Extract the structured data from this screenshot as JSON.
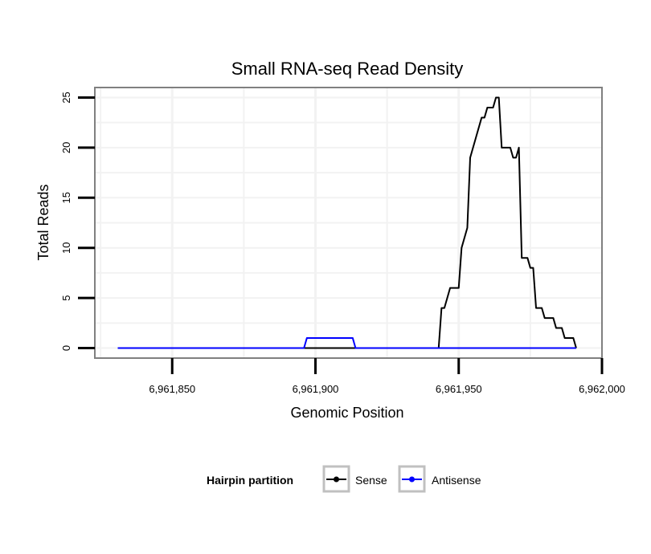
{
  "chart_data": {
    "type": "line",
    "title": "Small RNA-seq Read Density",
    "xlabel": "Genomic Position",
    "ylabel": "Total Reads",
    "xlim": [
      6961823,
      6962000
    ],
    "ylim": [
      -1.0,
      26.0
    ],
    "x_ticks": [
      6961850,
      6961900,
      6961950,
      6962000
    ],
    "x_tick_labels": [
      "6,961,850",
      "6,961,900",
      "6,961,950",
      "6,962,000"
    ],
    "y_ticks": [
      0,
      5,
      10,
      15,
      20,
      25
    ],
    "y_tick_labels": [
      "0",
      "5",
      "10",
      "15",
      "20",
      "25"
    ],
    "grid": true,
    "legend": {
      "title": "Hairpin partition",
      "position": "bottom",
      "entries": [
        "Sense",
        "Antisense"
      ]
    },
    "series": [
      {
        "name": "Sense",
        "color": "#000000",
        "points": [
          [
            6961831,
            0
          ],
          [
            6961943,
            0
          ],
          [
            6961944,
            4
          ],
          [
            6961945,
            4
          ],
          [
            6961946,
            5
          ],
          [
            6961947,
            6
          ],
          [
            6961950,
            6
          ],
          [
            6961951,
            10
          ],
          [
            6961953,
            12
          ],
          [
            6961954,
            19
          ],
          [
            6961956,
            21
          ],
          [
            6961958,
            23
          ],
          [
            6961959,
            23
          ],
          [
            6961960,
            24
          ],
          [
            6961962,
            24
          ],
          [
            6961963,
            25
          ],
          [
            6961964,
            25
          ],
          [
            6961965,
            20
          ],
          [
            6961968,
            20
          ],
          [
            6961969,
            19
          ],
          [
            6961970,
            19
          ],
          [
            6961971,
            20
          ],
          [
            6961972,
            9
          ],
          [
            6961974,
            9
          ],
          [
            6961975,
            8
          ],
          [
            6961976,
            8
          ],
          [
            6961977,
            4
          ],
          [
            6961979,
            4
          ],
          [
            6961980,
            3
          ],
          [
            6961983,
            3
          ],
          [
            6961984,
            2
          ],
          [
            6961986,
            2
          ],
          [
            6961987,
            1
          ],
          [
            6961990,
            1
          ],
          [
            6961991,
            0
          ]
        ]
      },
      {
        "name": "Antisense",
        "color": "#0000ff",
        "points": [
          [
            6961831,
            0
          ],
          [
            6961896,
            0
          ],
          [
            6961897,
            1
          ],
          [
            6961913,
            1
          ],
          [
            6961914,
            0
          ],
          [
            6961991,
            0
          ]
        ]
      }
    ]
  }
}
